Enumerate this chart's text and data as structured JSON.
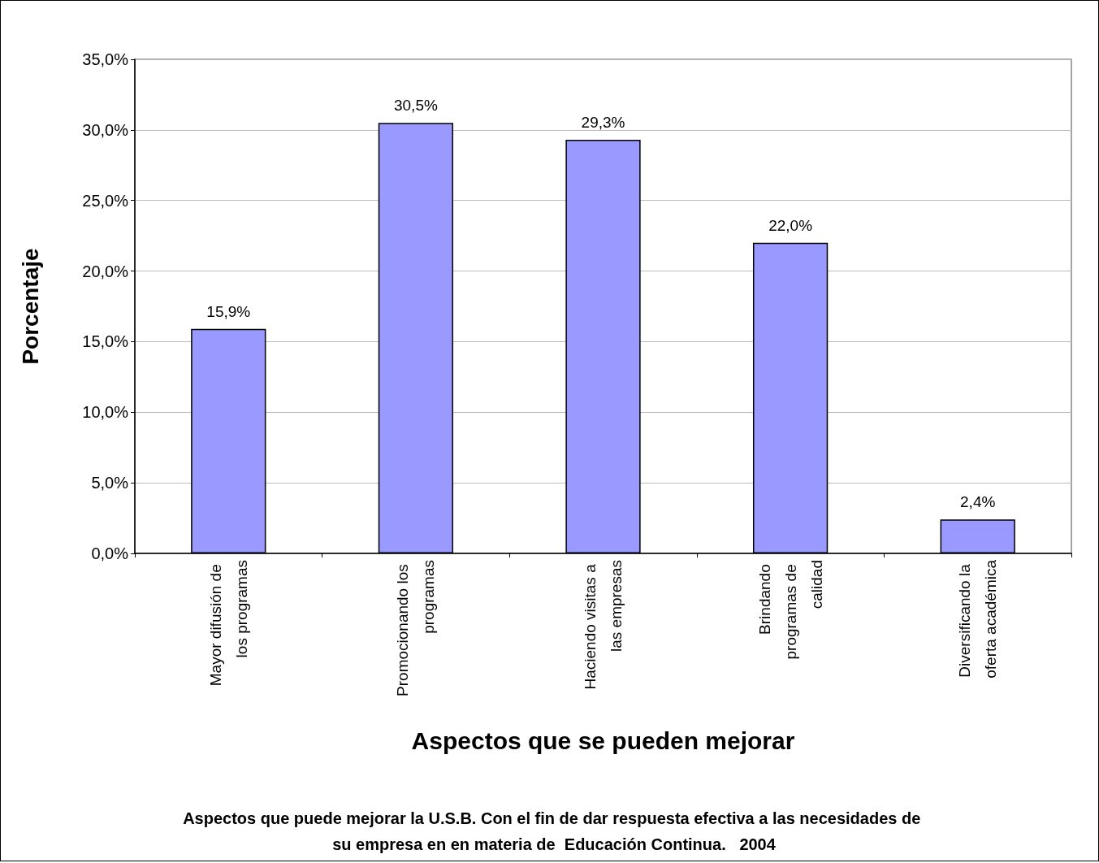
{
  "chart_data": {
    "type": "bar",
    "xlabel": "Aspectos que se pueden mejorar",
    "ylabel": "Porcentaje",
    "categories": [
      "Mayor difusión de los programas",
      "Promocionando los programas",
      "Haciendo visitas a las empresas",
      "Brindando programas de calidad",
      "Diversificando la oferta académica"
    ],
    "values": [
      15.9,
      30.5,
      29.3,
      22.0,
      2.4
    ],
    "value_labels": [
      "15,9%",
      "30,5%",
      "29,3%",
      "22,0%",
      "2,4%"
    ],
    "color": "#9999ff",
    "ylim": [
      0,
      35
    ],
    "yticks": [
      {
        "value": 0,
        "label": "0,0%"
      },
      {
        "value": 5,
        "label": "5,0%"
      },
      {
        "value": 10,
        "label": "10,0%"
      },
      {
        "value": 15,
        "label": "15,0%"
      },
      {
        "value": 20,
        "label": "20,0%"
      },
      {
        "value": 25,
        "label": "25,0%"
      },
      {
        "value": 30,
        "label": "30,0%"
      },
      {
        "value": 35,
        "label": "35,0%"
      }
    ],
    "grid": "y",
    "annotations": [
      "Aspectos que puede mejorar la U.S.B. Con el fin de dar respuesta efectiva a las necesidades de su empresa en en materia de  Educación Continua.   2004"
    ]
  }
}
